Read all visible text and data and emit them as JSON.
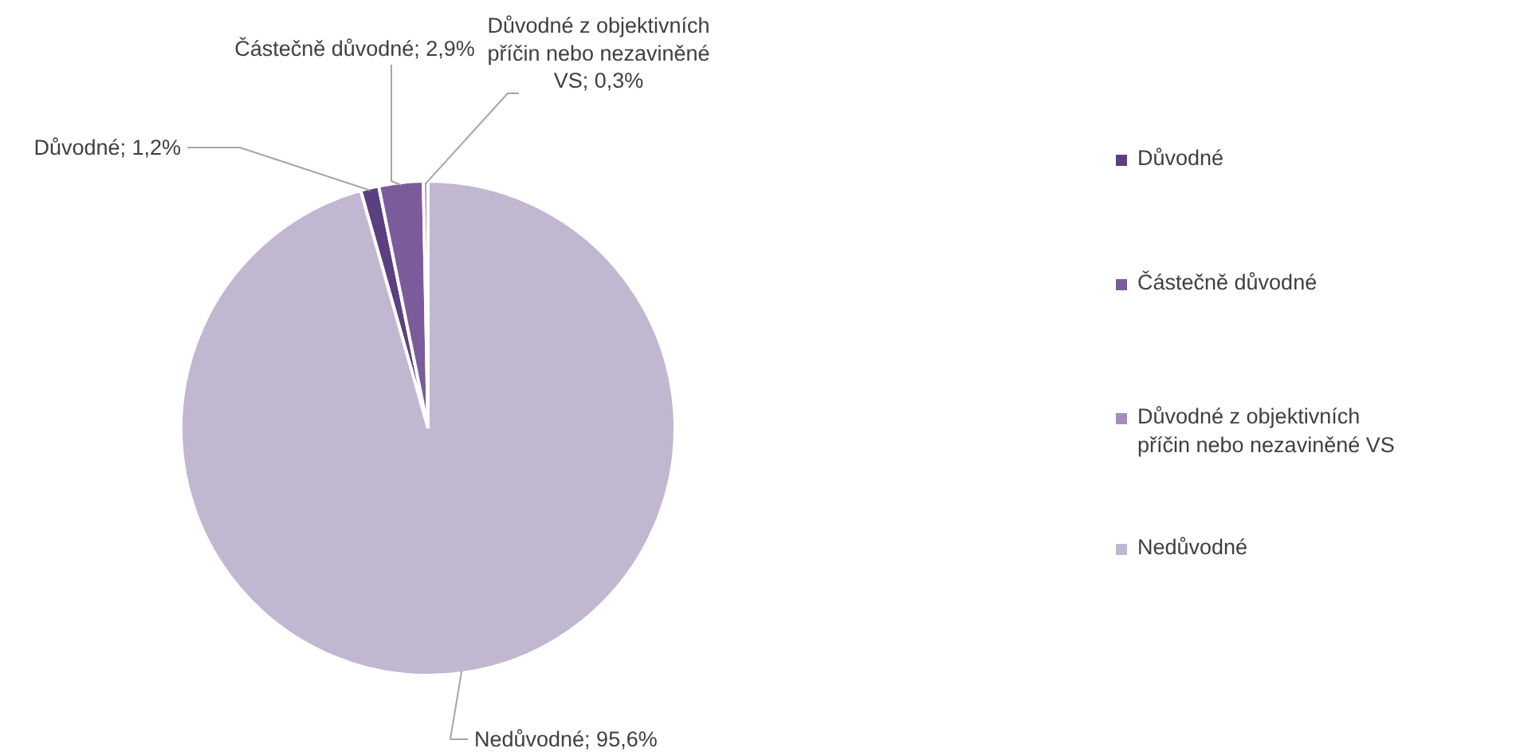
{
  "chart_data": {
    "type": "pie",
    "categories": [
      "Důvodné",
      "Částečně důvodné",
      "Důvodné z objektivních příčin nebo nezaviněné VS",
      "Nedůvodné"
    ],
    "values": [
      1.2,
      2.9,
      0.3,
      95.6
    ],
    "colors": [
      "#5c3f80",
      "#7a5c9b",
      "#a38dbd",
      "#c2b7d1"
    ],
    "value_labels": [
      "Důvodné; 1,2%",
      "Částečně důvodné; 2,9%",
      "Důvodné z objektivních příčin nebo nezaviněné VS; 0,3%",
      "Nedůvodné; 95,6%"
    ],
    "legend": "right"
  }
}
